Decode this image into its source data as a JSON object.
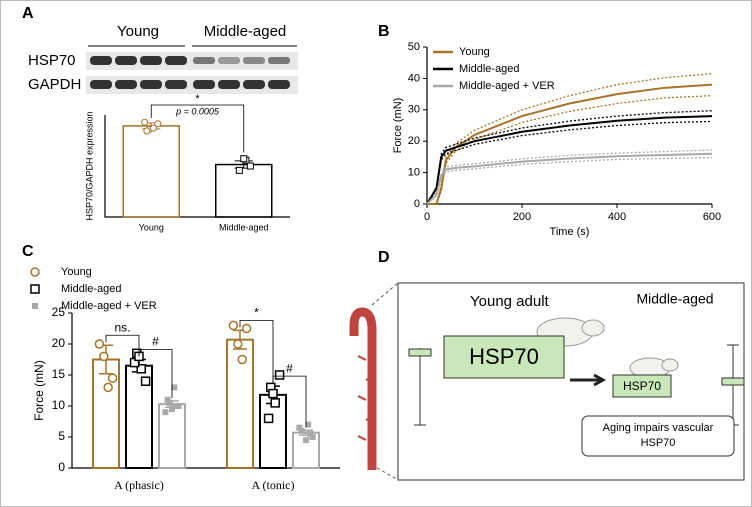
{
  "panels": {
    "a": "A",
    "b": "B",
    "c": "C",
    "d": "D"
  },
  "blot": {
    "groups": [
      "Young",
      "Middle-aged"
    ],
    "rows": [
      "HSP70",
      "GAPDH"
    ]
  },
  "chart_data": [
    {
      "type": "bar",
      "ylabel": "HSP70/GAPDH expression",
      "categories": [
        "Young",
        "Middle-aged"
      ],
      "values": [
        1.25,
        0.72
      ],
      "errors": [
        0.04,
        0.05
      ],
      "colors": [
        "#a8742a",
        "#000000"
      ],
      "points": [
        [
          1.3,
          1.2,
          1.22,
          1.28,
          1.18
        ],
        [
          0.78,
          0.7,
          0.64,
          0.8
        ]
      ],
      "ylim": [
        0,
        1.4
      ],
      "annotations": [
        "*",
        "p = 0.0005"
      ]
    },
    {
      "type": "line",
      "xlabel": "Time (s)",
      "ylabel": "Force (mN)",
      "x": [
        0,
        20,
        30,
        40,
        60,
        100,
        200,
        300,
        400,
        500,
        600
      ],
      "series": [
        {
          "name": "Young",
          "color": "#a8742a",
          "values": [
            0,
            0,
            5,
            14,
            18,
            22,
            28,
            32,
            35,
            37,
            38
          ],
          "sem": [
            0,
            0,
            1,
            1,
            1.2,
            1.5,
            2,
            2.5,
            3,
            3.2,
            3.5
          ]
        },
        {
          "name": "Middle-aged",
          "color": "#000000",
          "values": [
            0,
            5,
            15,
            17,
            18,
            20,
            23,
            25,
            26.5,
            27.5,
            28
          ],
          "sem": [
            0,
            0.5,
            1,
            1,
            1,
            1,
            1.2,
            1.4,
            1.5,
            1.6,
            1.7
          ]
        },
        {
          "name": "Middle-aged + VER",
          "color": "#a9a9a9",
          "values": [
            0,
            3,
            9,
            11,
            11.5,
            12,
            13.5,
            14.5,
            15.2,
            15.6,
            16
          ],
          "sem": [
            0,
            0.3,
            0.6,
            0.8,
            0.8,
            0.8,
            0.9,
            1,
            1,
            1.1,
            1.2
          ]
        }
      ],
      "xlim": [
        0,
        600
      ],
      "xticks": [
        0,
        200,
        400,
        600
      ],
      "ylim": [
        0,
        50
      ],
      "yticks": [
        0,
        10,
        20,
        30,
        40,
        50
      ],
      "legend": "top-left"
    },
    {
      "type": "groupedbar",
      "ylabel": "Force (mN)",
      "categories": [
        "A (phasic)",
        "A (tonic)"
      ],
      "series": [
        {
          "name": "Young",
          "color": "#a8742a",
          "values": [
            17.5,
            20.7
          ],
          "errors": [
            2.3,
            1.5
          ],
          "points": [
            [
              20,
              18,
              13,
              14.5
            ],
            [
              23,
              20,
              17.5,
              22.5
            ]
          ]
        },
        {
          "name": "Middle-aged",
          "color": "#000000",
          "values": [
            16.5,
            11.8
          ],
          "errors": [
            1,
            1.4
          ],
          "points": [
            [
              18.5,
              16,
              14,
              17,
              18
            ],
            [
              13,
              10.5,
              15,
              8,
              12
            ]
          ]
        },
        {
          "name": "Middle-aged + VER",
          "color": "#a9a9a9",
          "values": [
            10.3,
            5.7
          ],
          "errors": [
            0.5,
            0.4
          ],
          "points": [
            [
              13,
              10,
              11,
              9.5,
              10,
              9,
              10.5
            ],
            [
              7,
              5,
              6,
              4.5,
              5.5,
              6.5
            ]
          ]
        }
      ],
      "ylim": [
        0,
        25
      ],
      "yticks": [
        0,
        5,
        10,
        15,
        20,
        25
      ],
      "annotations": [
        "ns.",
        "#",
        "*",
        "#"
      ],
      "legend": "top-left"
    }
  ],
  "diagram": {
    "young": "Young adult",
    "middle": "Middle-aged",
    "hsp_big": "HSP70",
    "hsp_small": "HSP70",
    "note": "Aging impairs vascular HSP70"
  }
}
